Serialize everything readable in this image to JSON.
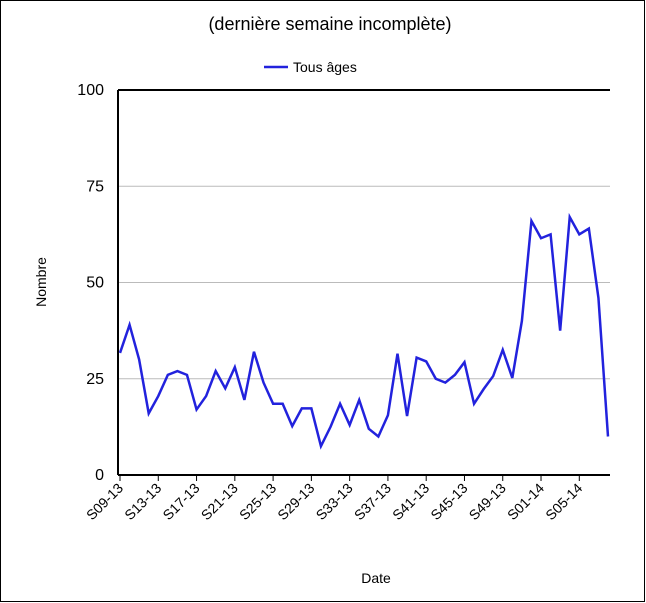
{
  "chart_data": {
    "type": "line",
    "title": "(dernière semaine incomplète)",
    "x_label": "Date",
    "y_label": "Nombre",
    "categories": [
      "S09-13",
      null,
      null,
      null,
      "S13-13",
      null,
      null,
      null,
      "S17-13",
      null,
      null,
      null,
      "S21-13",
      null,
      null,
      null,
      "S25-13",
      null,
      null,
      null,
      "S29-13",
      null,
      null,
      null,
      "S33-13",
      null,
      null,
      null,
      "S37-13",
      null,
      null,
      null,
      "S41-13",
      null,
      null,
      null,
      "S45-13",
      null,
      null,
      null,
      "S49-13",
      null,
      null,
      null,
      "S01-14",
      null,
      null,
      null,
      "S05-14",
      null,
      null,
      null
    ],
    "series": [
      {
        "name": "Tous âges",
        "color": "#2222dd",
        "values": [
          31.7,
          39,
          30,
          16,
          20.5,
          26,
          27,
          26,
          17,
          20.5,
          27,
          22.5,
          28,
          19.5,
          32,
          24,
          18.5,
          18.5,
          12.7,
          17.3,
          17.3,
          7.5,
          12.5,
          18.5,
          13,
          19.5,
          12,
          10,
          15.5,
          31.5,
          15.3,
          30.5,
          29.5,
          25,
          24,
          26,
          29.3,
          18.5,
          22.3,
          25.7,
          32.5,
          25.2,
          40,
          66,
          61.5,
          62.5,
          37.5,
          67,
          62.5,
          64,
          46,
          10
        ]
      }
    ],
    "ylim": [
      0,
      100
    ],
    "yticks": [
      0,
      25,
      50,
      75,
      100
    ],
    "grid": true,
    "legend": "top"
  }
}
